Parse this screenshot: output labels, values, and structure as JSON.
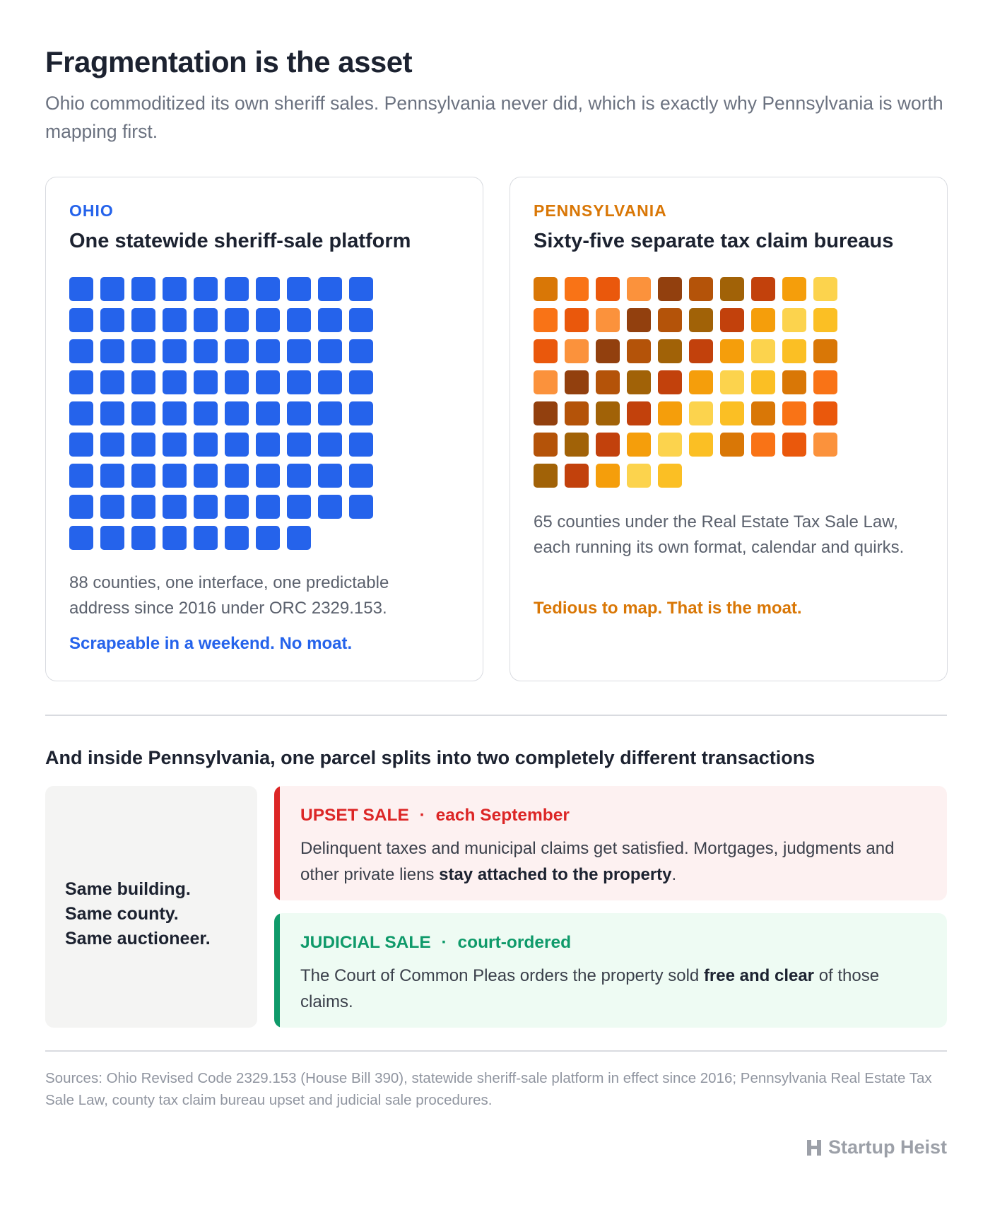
{
  "title": "Fragmentation is the asset",
  "subtitle": "Ohio commoditized its own sheriff sales. Pennsylvania never did, which is exactly why Pennsylvania is worth mapping first.",
  "ohio": {
    "label": "OHIO",
    "heading": "One statewide sheriff-sale platform",
    "count": 88,
    "color": "#2563eb",
    "desc": "88 counties, one interface, one predictable address since 2016 under ORC 2329.153.",
    "tag": "Scrapeable in a weekend. No moat."
  },
  "pennsylvania": {
    "label": "PENNSYLVANIA",
    "heading": "Sixty-five separate tax claim bureaus",
    "count": 65,
    "palette": [
      "#d97706",
      "#f59e0b",
      "#b45309",
      "#ea580c",
      "#fbbf24",
      "#c2410c",
      "#92400e",
      "#f97316",
      "#fcd34d",
      "#a16207",
      "#fb923c"
    ],
    "desc": "65 counties under the Real Estate Tax Sale Law, each running its own format, calendar and quirks.",
    "tag": "Tedious to map. That is the moat."
  },
  "section_heading": "And inside Pennsylvania, one parcel splits into two completely different transactions",
  "same": {
    "lines": [
      "Same building.",
      "Same county.",
      "Same auctioneer."
    ]
  },
  "upset": {
    "name": "UPSET SALE",
    "sep": "·",
    "when": "each September",
    "text_before": "Delinquent taxes and municipal claims get satisfied. Mortgages, judgments and other private liens ",
    "text_bold": "stay attached to the property",
    "text_after": "."
  },
  "judicial": {
    "name": "JUDICIAL SALE",
    "sep": "·",
    "when": "court-ordered",
    "text_before": "The Court of Common Pleas orders the property sold ",
    "text_bold": "free and clear",
    "text_after": " of those claims."
  },
  "sources": "Sources: Ohio Revised Code 2329.153 (House Bill 390), statewide sheriff-sale platform in effect since 2016; Pennsylvania Real Estate Tax Sale Law, county tax claim bureau upset and judicial sale procedures.",
  "brand": "Startup Heist"
}
